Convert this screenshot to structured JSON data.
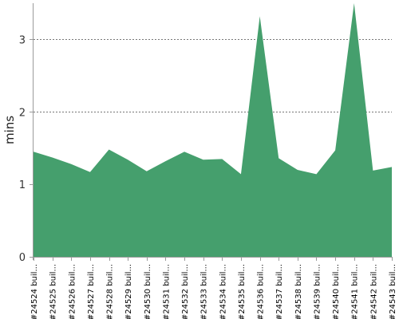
{
  "chart_data": {
    "type": "area",
    "ylabel": "mins",
    "xlabel": "",
    "ylim": [
      0,
      3.5
    ],
    "yticks": [
      "0",
      "1",
      "2",
      "3"
    ],
    "grid": true,
    "categories": [
      "#24524 buil...",
      "#24525 buil...",
      "#24526 buil...",
      "#24527 buil...",
      "#24528 buil...",
      "#24529 buil...",
      "#24530 buil...",
      "#24531 buil...",
      "#24532 buil...",
      "#24533 buil...",
      "#24534 buil...",
      "#24535 buil...",
      "#24536 buil...",
      "#24537 buil...",
      "#24538 buil...",
      "#24539 buil...",
      "#24540 buil...",
      "#24541 buil...",
      "#24542 buil...",
      "#24543 buil..."
    ],
    "values": [
      1.45,
      1.37,
      1.28,
      1.17,
      1.48,
      1.34,
      1.18,
      1.32,
      1.45,
      1.34,
      1.35,
      1.14,
      3.32,
      1.36,
      1.2,
      1.14,
      1.47,
      3.5,
      1.19,
      1.24
    ],
    "colors": {
      "area": "#459f6d",
      "grid": "#777777",
      "axis": "#9a9a9a"
    }
  }
}
